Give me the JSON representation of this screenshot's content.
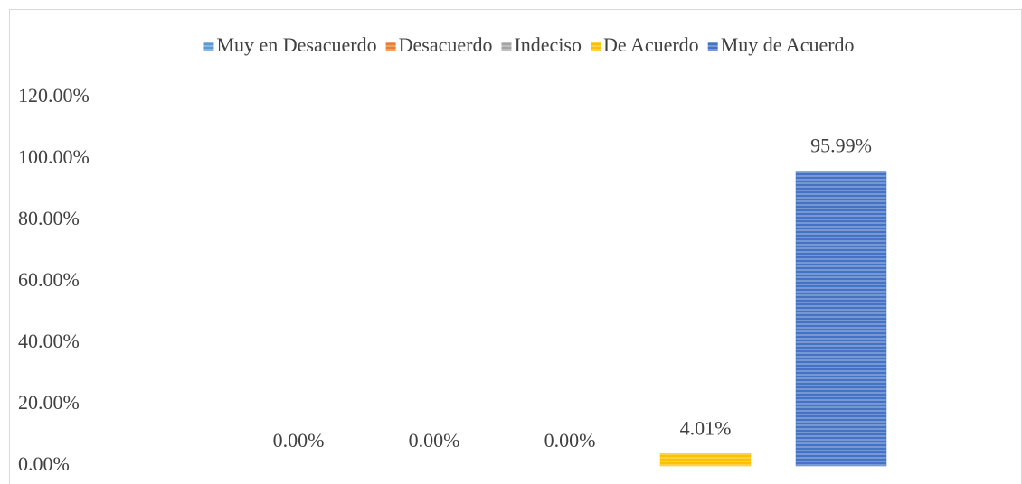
{
  "chart_data": {
    "type": "bar",
    "categories": [
      null
    ],
    "series": [
      {
        "name": "Muy en Desacuerdo",
        "color": "#5b9bd5",
        "values": [
          0
        ],
        "value_labels": [
          "0.00%"
        ]
      },
      {
        "name": "Desacuerdo",
        "color": "#ed7d31",
        "values": [
          0
        ],
        "value_labels": [
          "0.00%"
        ]
      },
      {
        "name": "Indeciso",
        "color": "#a5a5a5",
        "values": [
          0
        ],
        "value_labels": [
          "0.00%"
        ]
      },
      {
        "name": "De Acuerdo",
        "color": "#ffc000",
        "values": [
          4.01
        ],
        "value_labels": [
          "4.01%"
        ]
      },
      {
        "name": "Muy de Acuerdo",
        "color": "#4472c4",
        "values": [
          95.99
        ],
        "value_labels": [
          "95.99%"
        ]
      }
    ],
    "ylim": [
      0,
      120
    ],
    "yticks": [
      {
        "value": 0,
        "label": "0.00%"
      },
      {
        "value": 20,
        "label": "20.00%"
      },
      {
        "value": 40,
        "label": "40.00%"
      },
      {
        "value": 60,
        "label": "60.00%"
      },
      {
        "value": 80,
        "label": "80.00%"
      },
      {
        "value": 100,
        "label": "100.00%"
      },
      {
        "value": 120,
        "label": "120.00%"
      }
    ],
    "legend": "top",
    "grid": false
  }
}
